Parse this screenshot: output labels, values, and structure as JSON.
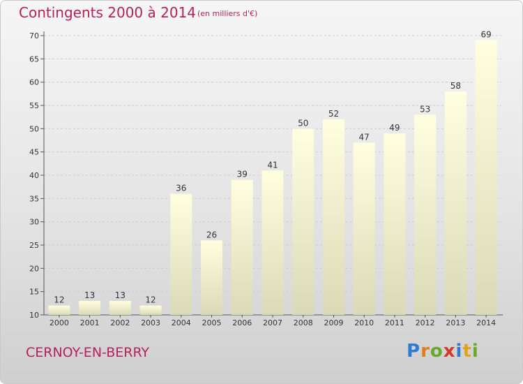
{
  "header": {
    "title": "Contingents 2000 à 2014",
    "subtitle": "(en milliers d'€)"
  },
  "footer": {
    "commune": "CERNOY-EN-BERRY",
    "logo": {
      "text": "Proxiti",
      "letters": [
        {
          "ch": "P",
          "color": "#2e7bd1"
        },
        {
          "ch": "r",
          "color": "#e27d1e"
        },
        {
          "ch": "o",
          "color": "#6aa82c"
        },
        {
          "ch": "x",
          "color": "#d23a2a"
        },
        {
          "ch": "i",
          "color": "#2e7bd1"
        },
        {
          "ch": "t",
          "color": "#e2a21e"
        },
        {
          "ch": "i",
          "color": "#6aa82c"
        }
      ]
    }
  },
  "colors": {
    "accent": "#b5215a",
    "bar_top": "#ffffe0",
    "bar_bottom": "#dadab8",
    "grid": "#cccccc"
  },
  "chart_data": {
    "type": "bar",
    "categories": [
      "2000",
      "2001",
      "2002",
      "2003",
      "2004",
      "2005",
      "2006",
      "2007",
      "2008",
      "2009",
      "2010",
      "2011",
      "2012",
      "2013",
      "2014"
    ],
    "values": [
      12,
      13,
      13,
      12,
      36,
      26,
      39,
      41,
      50,
      52,
      47,
      49,
      53,
      58,
      69
    ],
    "ylim": [
      10,
      70
    ],
    "yticks": [
      10,
      15,
      20,
      25,
      30,
      35,
      40,
      45,
      50,
      55,
      60,
      65,
      70
    ],
    "grid": true,
    "data_labels": true
  }
}
